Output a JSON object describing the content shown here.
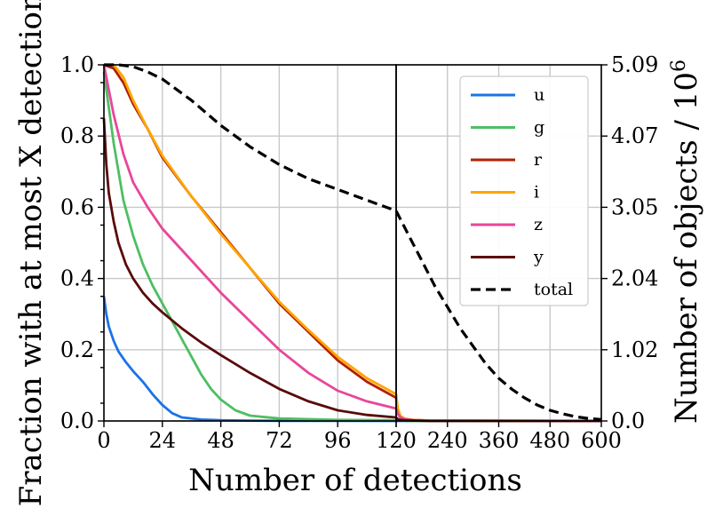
{
  "chart_data": {
    "type": "line",
    "ylabel_left": "Fraction with at most X detections",
    "ylabel_right": "Number of objects / 10",
    "ylabel_right_exponent": "6",
    "xlabel": "Number of detections",
    "left_panel": {
      "xlim": [
        0,
        120
      ],
      "xticks": [
        "0",
        "24",
        "48",
        "72",
        "96",
        "120"
      ],
      "xtick_values": [
        0,
        24,
        48,
        72,
        96,
        120
      ]
    },
    "right_panel": {
      "xlim": [
        120,
        600
      ],
      "xticks": [
        "120",
        "240",
        "360",
        "480",
        "600"
      ],
      "xtick_values": [
        120,
        240,
        360,
        480,
        600
      ]
    },
    "ylim": [
      0,
      1.0
    ],
    "yticks_left": [
      "0.0",
      "0.2",
      "0.4",
      "0.6",
      "0.8",
      "1.0"
    ],
    "ytick_values": [
      0,
      0.2,
      0.4,
      0.6,
      0.8,
      1.0
    ],
    "yticks_right": [
      "0.0",
      "1.02",
      "2.04",
      "3.05",
      "4.07",
      "5.09"
    ],
    "legend_position": "top-right",
    "series": [
      {
        "name": "u",
        "color": "#1a73e8",
        "dashed": false,
        "x": [
          0,
          1,
          2,
          4,
          6,
          9,
          12,
          16,
          20,
          24,
          28,
          32,
          40,
          48,
          60,
          72,
          96,
          120,
          150,
          200,
          600
        ],
        "y": [
          0.35,
          0.3,
          0.265,
          0.225,
          0.195,
          0.165,
          0.14,
          0.11,
          0.075,
          0.045,
          0.022,
          0.01,
          0.004,
          0.002,
          0.001,
          0.0005,
          0.0002,
          0.0001,
          0.0,
          0.0,
          0.0
        ]
      },
      {
        "name": "g",
        "color": "#4dbf63",
        "dashed": false,
        "x": [
          0,
          2,
          4,
          8,
          12,
          16,
          20,
          24,
          28,
          32,
          36,
          40,
          44,
          48,
          54,
          60,
          72,
          96,
          120,
          130,
          150,
          200,
          600
        ],
        "y": [
          0.98,
          0.88,
          0.78,
          0.62,
          0.52,
          0.44,
          0.38,
          0.33,
          0.28,
          0.23,
          0.18,
          0.13,
          0.09,
          0.06,
          0.03,
          0.015,
          0.007,
          0.003,
          0.002,
          0.001,
          0.0,
          0.0,
          0.0
        ]
      },
      {
        "name": "r",
        "color": "#b22000",
        "dashed": false,
        "x": [
          0,
          4,
          8,
          12,
          18,
          24,
          36,
          48,
          60,
          72,
          84,
          96,
          108,
          120,
          124,
          130,
          140,
          160,
          200,
          600
        ],
        "y": [
          1.0,
          0.99,
          0.95,
          0.89,
          0.82,
          0.74,
          0.63,
          0.53,
          0.43,
          0.33,
          0.25,
          0.17,
          0.11,
          0.065,
          0.03,
          0.012,
          0.006,
          0.003,
          0.001,
          0.0
        ]
      },
      {
        "name": "i",
        "color": "#ffa500",
        "dashed": false,
        "x": [
          0,
          4,
          8,
          12,
          18,
          24,
          36,
          48,
          60,
          72,
          84,
          96,
          108,
          120,
          124,
          130,
          140,
          160,
          200,
          600
        ],
        "y": [
          1.0,
          1.0,
          0.965,
          0.9,
          0.82,
          0.745,
          0.63,
          0.525,
          0.43,
          0.335,
          0.255,
          0.18,
          0.12,
          0.075,
          0.035,
          0.014,
          0.007,
          0.003,
          0.001,
          0.0
        ]
      },
      {
        "name": "z",
        "color": "#e8469a",
        "dashed": false,
        "x": [
          0,
          2,
          4,
          8,
          12,
          18,
          24,
          36,
          48,
          60,
          72,
          84,
          96,
          108,
          120,
          124,
          130,
          140,
          160,
          200,
          600
        ],
        "y": [
          1.0,
          0.93,
          0.86,
          0.75,
          0.67,
          0.6,
          0.54,
          0.45,
          0.36,
          0.28,
          0.2,
          0.135,
          0.085,
          0.055,
          0.035,
          0.02,
          0.01,
          0.005,
          0.002,
          0.001,
          0.0
        ]
      },
      {
        "name": "y",
        "color": "#5a0a0a",
        "dashed": false,
        "x": [
          0,
          1,
          2,
          4,
          6,
          9,
          12,
          16,
          20,
          24,
          32,
          40,
          48,
          60,
          72,
          84,
          96,
          108,
          120,
          124,
          130,
          140,
          200,
          600
        ],
        "y": [
          0.85,
          0.72,
          0.64,
          0.56,
          0.5,
          0.44,
          0.4,
          0.36,
          0.33,
          0.305,
          0.26,
          0.22,
          0.185,
          0.135,
          0.09,
          0.055,
          0.03,
          0.017,
          0.01,
          0.005,
          0.003,
          0.002,
          0.0,
          0.0
        ]
      },
      {
        "name": "total",
        "color": "#000000",
        "dashed": true,
        "x": [
          0,
          6,
          12,
          18,
          24,
          36,
          48,
          60,
          72,
          84,
          96,
          108,
          120,
          150,
          180,
          210,
          240,
          270,
          300,
          330,
          360,
          390,
          420,
          450,
          480,
          510,
          540,
          570,
          600
        ],
        "y": [
          1.0,
          1.0,
          0.995,
          0.98,
          0.96,
          0.9,
          0.83,
          0.77,
          0.72,
          0.68,
          0.65,
          0.62,
          0.59,
          0.52,
          0.45,
          0.38,
          0.32,
          0.26,
          0.21,
          0.16,
          0.12,
          0.09,
          0.065,
          0.045,
          0.03,
          0.02,
          0.012,
          0.007,
          0.004
        ]
      }
    ]
  }
}
